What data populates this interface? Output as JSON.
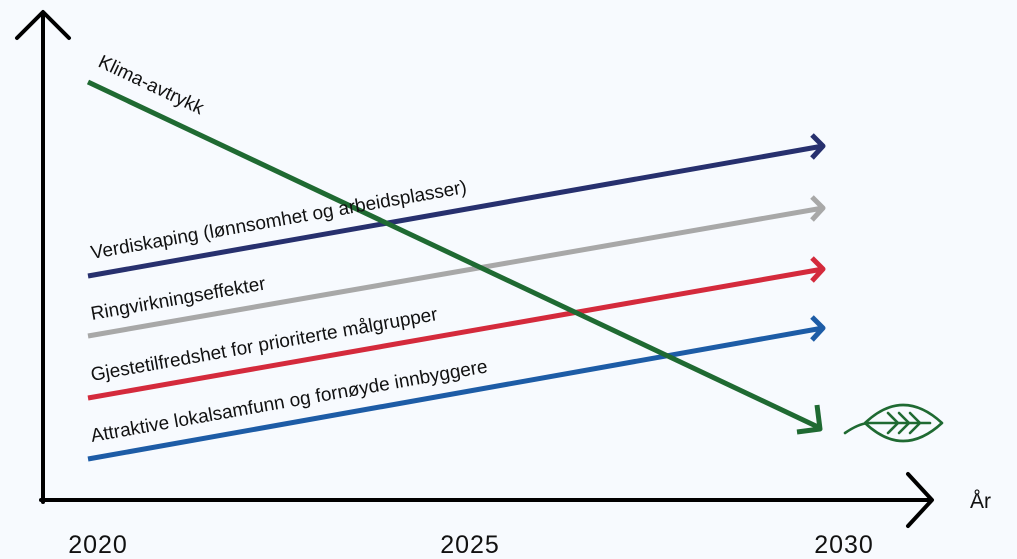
{
  "axis": {
    "x_unit": "År",
    "ticks": [
      "2020",
      "2025",
      "2030"
    ]
  },
  "series": [
    {
      "name": "Klima-avtrykk",
      "color": "#1f6a32",
      "trend": "decreasing"
    },
    {
      "name": "Verdiskaping (lønnsomhet og arbeidsplasser)",
      "color": "#27306e",
      "trend": "increasing"
    },
    {
      "name": "Ringvirkningseffekter",
      "color": "#a8a8a8",
      "trend": "increasing"
    },
    {
      "name": "Gjestetilfredshet for prioriterte målgrupper",
      "color": "#d42a3c",
      "trend": "increasing"
    },
    {
      "name": "Attraktive lokalsamfunn og fornøyde innbyggere",
      "color": "#1d5ca6",
      "trend": "increasing"
    }
  ],
  "end_icon": "leaf-icon",
  "end_icon_color": "#1f6a32"
}
